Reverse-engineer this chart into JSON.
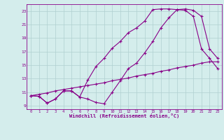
{
  "xlabel": "Windchill (Refroidissement éolien,°C)",
  "bg_color": "#d4edec",
  "line_color": "#880088",
  "grid_color": "#b0d0d0",
  "xlim": [
    -0.5,
    23.5
  ],
  "ylim": [
    8.5,
    24.0
  ],
  "xticks": [
    0,
    1,
    2,
    3,
    4,
    5,
    6,
    7,
    8,
    9,
    10,
    11,
    12,
    13,
    14,
    15,
    16,
    17,
    18,
    19,
    20,
    21,
    22,
    23
  ],
  "yticks": [
    9,
    11,
    13,
    15,
    17,
    19,
    21,
    23
  ],
  "line1_x": [
    0,
    1,
    2,
    3,
    4,
    5,
    6,
    7,
    8,
    9,
    10,
    11,
    12,
    13,
    14,
    15,
    16,
    17,
    18,
    19,
    20,
    21,
    22,
    23
  ],
  "line1_y": [
    10.5,
    10.4,
    9.4,
    10.0,
    11.2,
    11.2,
    10.3,
    10.0,
    9.5,
    9.3,
    11.0,
    12.7,
    14.5,
    15.3,
    16.8,
    18.5,
    20.5,
    22.0,
    23.2,
    23.3,
    23.1,
    22.2,
    17.4,
    16.0
  ],
  "line2_x": [
    0,
    1,
    2,
    3,
    4,
    5,
    6,
    7,
    8,
    9,
    10,
    11,
    12,
    13,
    14,
    15,
    16,
    17,
    18,
    19,
    20,
    21,
    22,
    23
  ],
  "line2_y": [
    10.5,
    10.4,
    9.4,
    10.0,
    11.2,
    11.2,
    10.3,
    12.8,
    14.8,
    16.0,
    17.5,
    18.5,
    19.8,
    20.5,
    21.5,
    23.2,
    23.3,
    23.3,
    23.2,
    23.1,
    22.2,
    17.4,
    16.0,
    14.5
  ],
  "line3_x": [
    0,
    1,
    2,
    3,
    4,
    5,
    6,
    7,
    8,
    9,
    10,
    11,
    12,
    13,
    14,
    15,
    16,
    17,
    18,
    19,
    20,
    21,
    22,
    23
  ],
  "line3_y": [
    10.5,
    10.7,
    10.9,
    11.2,
    11.4,
    11.6,
    11.8,
    12.0,
    12.2,
    12.4,
    12.7,
    12.9,
    13.1,
    13.4,
    13.6,
    13.8,
    14.1,
    14.3,
    14.6,
    14.8,
    15.0,
    15.3,
    15.5,
    15.5
  ]
}
